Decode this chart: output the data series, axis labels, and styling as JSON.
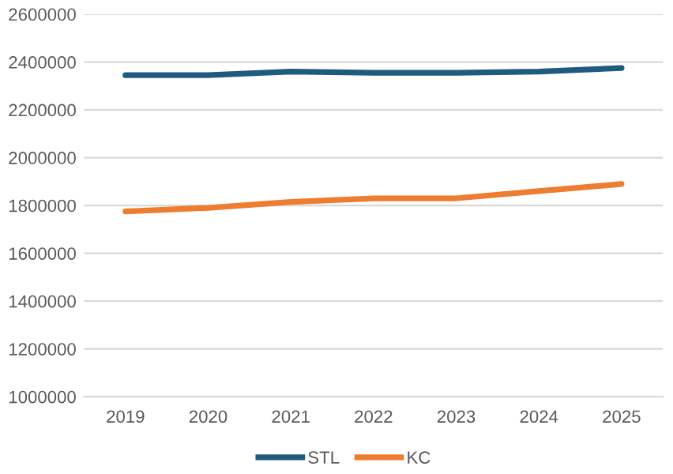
{
  "chart_data": {
    "type": "line",
    "categories": [
      "2019",
      "2020",
      "2021",
      "2022",
      "2023",
      "2024",
      "2025"
    ],
    "series": [
      {
        "name": "STL",
        "color": "#1f5b80",
        "values": [
          2345000,
          2345000,
          2360000,
          2355000,
          2355000,
          2360000,
          2375000
        ]
      },
      {
        "name": "KC",
        "color": "#ed7d31",
        "values": [
          1775000,
          1790000,
          1815000,
          1830000,
          1830000,
          1860000,
          1890000
        ]
      }
    ],
    "ylim": [
      1000000,
      2600000
    ],
    "yticks": [
      1000000,
      1200000,
      1400000,
      1600000,
      1800000,
      2000000,
      2200000,
      2400000,
      2600000
    ],
    "grid": "y",
    "legend": "bottom",
    "marker": "none",
    "line_style": "solid"
  }
}
